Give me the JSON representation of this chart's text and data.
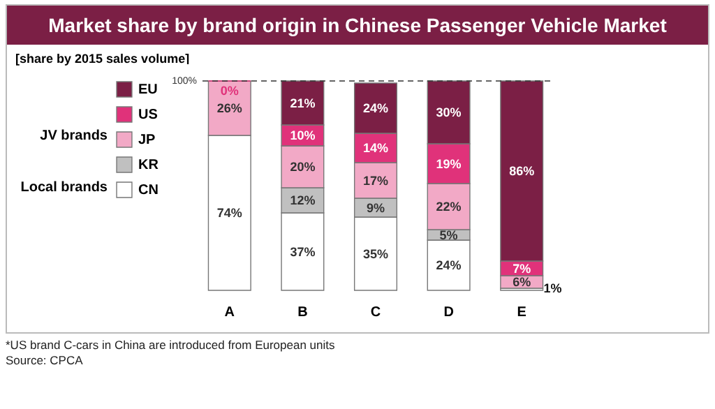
{
  "chart_data": {
    "type": "bar",
    "stacked": true,
    "title": "Market share by brand origin in Chinese Passenger Vehicle Market",
    "subtitle": "[share by 2015 sales volume]",
    "categories": [
      "A",
      "B",
      "C",
      "D",
      "E"
    ],
    "ylim": [
      0,
      100
    ],
    "series": [
      {
        "name": "CN",
        "color": "#ffffff",
        "values": [
          74,
          37,
          35,
          24,
          1
        ],
        "value_labels": [
          "74%",
          "37%",
          "35%",
          "24%",
          "1%"
        ]
      },
      {
        "name": "KR",
        "color": "#c0c0c0",
        "values": [
          null,
          12,
          9,
          5,
          null
        ],
        "value_labels": [
          null,
          "12%",
          "9%",
          "5%",
          null
        ]
      },
      {
        "name": "JP",
        "color": "#f2a9c6",
        "values": [
          26,
          20,
          17,
          22,
          6
        ],
        "value_labels": [
          "26%",
          "20%",
          "17%",
          "22%",
          "6%"
        ]
      },
      {
        "name": "US",
        "color": "#e0327a",
        "values": [
          0,
          10,
          14,
          19,
          7
        ],
        "value_labels": [
          "0%",
          "10%",
          "14%",
          "19%",
          "7%"
        ]
      },
      {
        "name": "EU",
        "color": "#7b1f45",
        "values": [
          null,
          21,
          24,
          30,
          86
        ],
        "value_labels": [
          null,
          "21%",
          "24%",
          "30%",
          "86%"
        ]
      }
    ],
    "ref_lines": [
      {
        "axis": "y",
        "value": 100,
        "label": "100%",
        "line_style": "dashed"
      }
    ],
    "legend": "left",
    "annotations": [
      "JV brands",
      "Local brands",
      "*US brand C-cars in China are introduced from European units",
      "Source: CPCA"
    ]
  }
}
